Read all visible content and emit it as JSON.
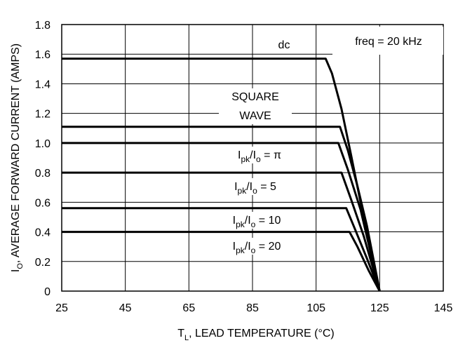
{
  "chart_data": {
    "type": "line",
    "title": "",
    "xlabel": {
      "main": "T",
      "sub": "L",
      "rest": ", LEAD TEMPERATURE (°C)"
    },
    "ylabel": {
      "main": "I",
      "sub": "O",
      "rest": ", AVERAGE FORWARD CURRENT (AMPS)"
    },
    "xlim": [
      25,
      145
    ],
    "ylim": [
      0,
      1.8
    ],
    "xticks": [
      25,
      45,
      65,
      85,
      105,
      125,
      145
    ],
    "xtick_labels": [
      "25",
      "45",
      "65",
      "85",
      "105",
      "125",
      "145"
    ],
    "yticks": [
      0,
      0.2,
      0.4,
      0.6,
      0.8,
      1.0,
      1.2,
      1.4,
      1.6,
      1.8
    ],
    "ytick_labels": [
      "0",
      "0.2",
      "0.4",
      "0.6",
      "0.8",
      "1.0",
      "1.2",
      "1.4",
      "1.6",
      "1.8"
    ],
    "grid": true,
    "series_color": "#000000",
    "freq_note": "freq = 20 kHz",
    "series": [
      {
        "label_parts": [
          {
            "t": "dc"
          }
        ],
        "points": [
          [
            25,
            1.57
          ],
          [
            108,
            1.57
          ],
          [
            110,
            1.47
          ],
          [
            113,
            1.23
          ],
          [
            116,
            0.92
          ],
          [
            119,
            0.6
          ],
          [
            122,
            0.28
          ],
          [
            125,
            0.0
          ]
        ]
      },
      {
        "label_parts": [
          {
            "t": "SQUARE"
          }
        ],
        "label_line2": "WAVE",
        "points": [
          [
            25,
            1.11
          ],
          [
            112.5,
            1.11
          ],
          [
            115,
            0.95
          ],
          [
            118,
            0.71
          ],
          [
            121,
            0.44
          ],
          [
            125,
            0.0
          ]
        ]
      },
      {
        "label_parts": [
          {
            "t": "I"
          },
          {
            "t": "pk",
            "sub": true
          },
          {
            "t": "/I"
          },
          {
            "t": "o",
            "sub": true
          },
          {
            "t": " = π"
          }
        ],
        "points": [
          [
            25,
            1.0
          ],
          [
            112,
            1.0
          ],
          [
            115,
            0.82
          ],
          [
            119,
            0.55
          ],
          [
            125,
            0.0
          ]
        ]
      },
      {
        "label_parts": [
          {
            "t": "I"
          },
          {
            "t": "pk",
            "sub": true
          },
          {
            "t": "/I"
          },
          {
            "t": "o",
            "sub": true
          },
          {
            "t": " = 5"
          }
        ],
        "points": [
          [
            25,
            0.8
          ],
          [
            113,
            0.8
          ],
          [
            116,
            0.62
          ],
          [
            120,
            0.37
          ],
          [
            125,
            0.0
          ]
        ]
      },
      {
        "label_parts": [
          {
            "t": "I"
          },
          {
            "t": "pk",
            "sub": true
          },
          {
            "t": "/I"
          },
          {
            "t": "o",
            "sub": true
          },
          {
            "t": " = 10"
          }
        ],
        "points": [
          [
            25,
            0.56
          ],
          [
            114.5,
            0.56
          ],
          [
            117,
            0.43
          ],
          [
            121,
            0.22
          ],
          [
            125,
            0.0
          ]
        ]
      },
      {
        "label_parts": [
          {
            "t": "I"
          },
          {
            "t": "pk",
            "sub": true
          },
          {
            "t": "/I"
          },
          {
            "t": "o",
            "sub": true
          },
          {
            "t": " = 20"
          }
        ],
        "points": [
          [
            25,
            0.4
          ],
          [
            115.5,
            0.4
          ],
          [
            118,
            0.3
          ],
          [
            121.5,
            0.14
          ],
          [
            125,
            0.0
          ]
        ]
      }
    ]
  }
}
